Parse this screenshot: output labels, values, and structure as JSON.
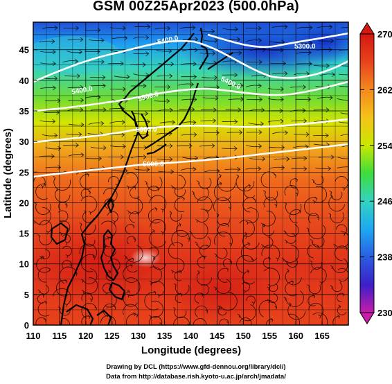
{
  "title": "GSM 00Z25Apr2023 (500.0hPa)",
  "x_axis": {
    "label": "Longitude (degrees)",
    "ticks": [
      "110",
      "115",
      "120",
      "125",
      "130",
      "135",
      "140",
      "145",
      "150",
      "155",
      "160",
      "165"
    ]
  },
  "y_axis": {
    "label": "Latitude  (degrees)",
    "ticks": [
      "0",
      "5",
      "10",
      "15",
      "20",
      "25",
      "30",
      "35",
      "40",
      "45"
    ]
  },
  "colorbar": {
    "ticks": [
      "270",
      "262",
      "254",
      "246",
      "238",
      "230"
    ],
    "colors": [
      "#e0249a",
      "#3b1fc9",
      "#1e9cf0",
      "#35d3c0",
      "#4ddc3e",
      "#e8f000",
      "#f5a21a",
      "#e63d1a",
      "#d82018"
    ]
  },
  "contours": {
    "color": "#ffffff",
    "labels": [
      "5300.0",
      "5400.0",
      "5400.0",
      "5500.0",
      "5600.0",
      "5400.0",
      "5600.0"
    ]
  },
  "credits": {
    "line1": "Drawing by DCL (https://www.gfd-dennou.org/library/dcl/)",
    "line2": "Data from http://database.rish.kyoto-u.ac.jp/arch/jmadata/"
  }
}
